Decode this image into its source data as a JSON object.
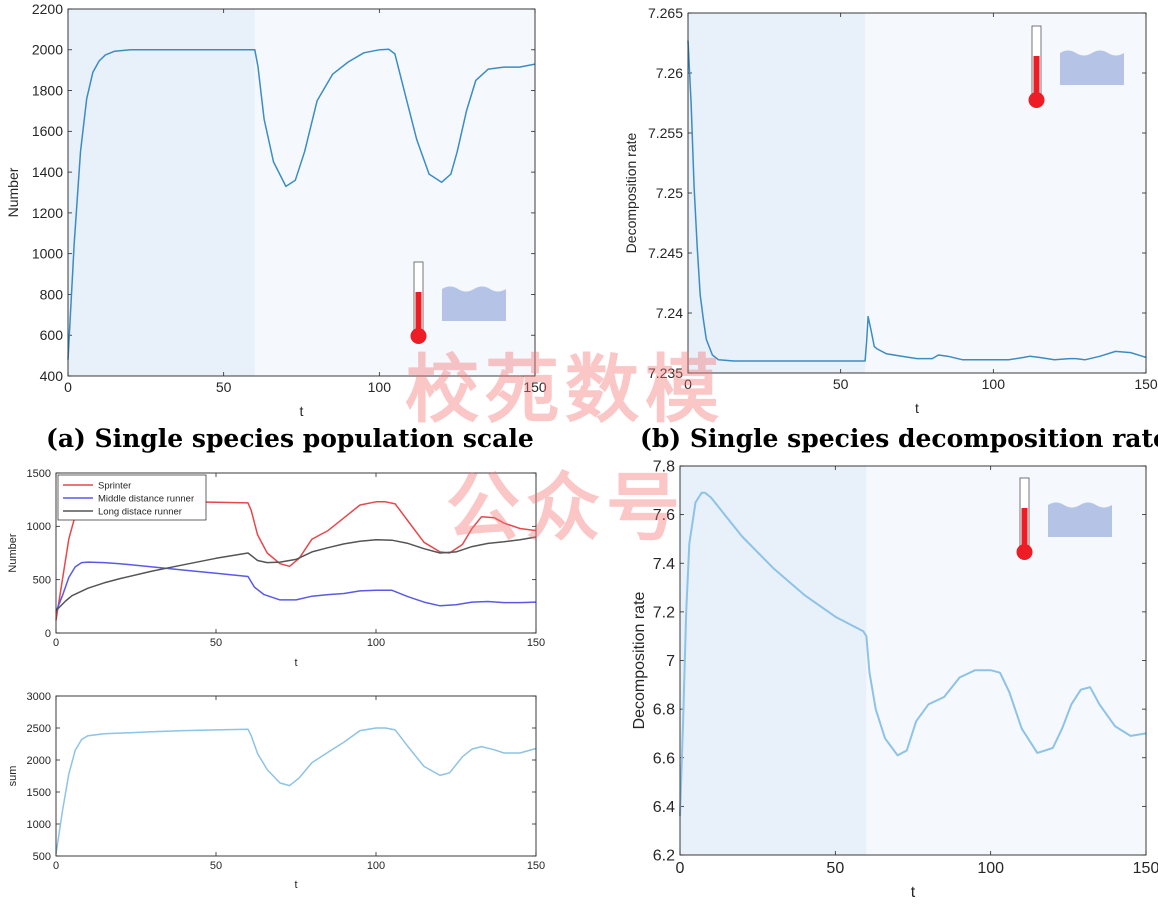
{
  "captions": {
    "a": "(a) Single species population scale",
    "b": "(b) Single species decomposition rate"
  },
  "watermark": {
    "line1": "校苑数模",
    "line2": "公众号"
  },
  "colors": {
    "line_blue": "#3c8cc4",
    "light_blue": "#8ec3e6",
    "shade": "#e8f0fa",
    "plot_bg": "#f5f9fe",
    "sprinter": "#e8474a",
    "middle": "#5a5ae8",
    "long": "#555555",
    "thermo_red": "#ee1c24",
    "water": "#b4c3e6"
  },
  "chart_data": [
    {
      "id": "a",
      "type": "line",
      "title": "",
      "xlabel": "t",
      "ylabel": "Number",
      "xlim": [
        0,
        150
      ],
      "ylim": [
        400,
        2200
      ],
      "xticks": [
        0,
        50,
        100,
        150
      ],
      "yticks": [
        400,
        600,
        800,
        1000,
        1200,
        1400,
        1600,
        1800,
        2000,
        2200
      ],
      "shaded_x": [
        0,
        60
      ],
      "series": [
        {
          "color_key": "line_blue",
          "x": [
            0,
            2,
            4,
            6,
            8,
            10,
            12,
            15,
            20,
            30,
            40,
            50,
            60,
            61,
            63,
            66,
            70,
            73,
            76,
            80,
            85,
            90,
            95,
            100,
            103,
            105,
            108,
            112,
            116,
            120,
            123,
            125,
            128,
            131,
            135,
            140,
            145,
            150
          ],
          "y": [
            480,
            1050,
            1500,
            1760,
            1890,
            1945,
            1975,
            1993,
            2000,
            2000,
            2000,
            2000,
            2000,
            1920,
            1660,
            1450,
            1330,
            1360,
            1500,
            1750,
            1880,
            1940,
            1985,
            2000,
            2003,
            1980,
            1800,
            1560,
            1390,
            1350,
            1390,
            1500,
            1700,
            1850,
            1905,
            1915,
            1915,
            1930
          ]
        }
      ],
      "icon": "thermometer-water-icon"
    },
    {
      "id": "b",
      "type": "line",
      "title": "",
      "xlabel": "t",
      "ylabel": "Decomposition rate",
      "xlim": [
        0,
        150
      ],
      "ylim": [
        7.235,
        7.265
      ],
      "xticks": [
        0,
        50,
        100,
        150
      ],
      "yticks": [
        7.235,
        7.24,
        7.245,
        7.25,
        7.255,
        7.26,
        7.265
      ],
      "ytick_labels": [
        "7.235",
        "7.24",
        "7.245",
        "7.25",
        "7.255",
        "7.26",
        "7.265"
      ],
      "shaded_x": [
        0,
        58
      ],
      "series": [
        {
          "color_key": "line_blue",
          "x": [
            0,
            1,
            2,
            3,
            4,
            5,
            6,
            8,
            10,
            15,
            20,
            30,
            40,
            50,
            58,
            58.5,
            59,
            60,
            61,
            62,
            65,
            70,
            75,
            80,
            82,
            85,
            90,
            95,
            100,
            105,
            110,
            112,
            115,
            120,
            125,
            127,
            130,
            135,
            140,
            145,
            150
          ],
          "y": [
            7.2627,
            7.2575,
            7.2505,
            7.2455,
            7.2415,
            7.2395,
            7.2378,
            7.2365,
            7.2361,
            7.236,
            7.236,
            7.236,
            7.236,
            7.236,
            7.236,
            7.2376,
            7.2397,
            7.2385,
            7.2372,
            7.237,
            7.2366,
            7.2364,
            7.2362,
            7.2362,
            7.2365,
            7.2364,
            7.2361,
            7.2361,
            7.2361,
            7.2361,
            7.2363,
            7.2364,
            7.2363,
            7.2361,
            7.2362,
            7.2362,
            7.2361,
            7.2364,
            7.2368,
            7.2367,
            7.2363
          ]
        }
      ],
      "icon": "thermometer-water-icon"
    },
    {
      "id": "c1",
      "type": "line",
      "title": "",
      "xlabel": "t",
      "ylabel": "Number",
      "xlim": [
        0,
        150
      ],
      "ylim": [
        0,
        1500
      ],
      "xticks": [
        0,
        50,
        100,
        150
      ],
      "yticks": [
        0,
        500,
        1000,
        1500
      ],
      "legend_position": "top-left",
      "series": [
        {
          "name": "Sprinter",
          "color_key": "sprinter",
          "x": [
            0,
            2,
            4,
            6,
            8,
            10,
            15,
            20,
            30,
            40,
            50,
            60,
            61,
            63,
            66,
            70,
            73,
            76,
            80,
            85,
            90,
            95,
            100,
            103,
            106,
            110,
            115,
            120,
            123,
            127,
            130,
            133,
            137,
            140,
            145,
            150
          ],
          "y": [
            120,
            500,
            880,
            1100,
            1210,
            1250,
            1245,
            1240,
            1235,
            1230,
            1225,
            1220,
            1150,
            920,
            750,
            650,
            625,
            700,
            880,
            960,
            1080,
            1200,
            1230,
            1230,
            1210,
            1050,
            850,
            760,
            750,
            830,
            980,
            1090,
            1080,
            1030,
            980,
            960
          ]
        },
        {
          "name": "Middle distance runner",
          "color_key": "middle",
          "x": [
            0,
            2,
            4,
            6,
            8,
            10,
            15,
            20,
            30,
            40,
            50,
            60,
            62,
            65,
            70,
            75,
            80,
            85,
            90,
            95,
            100,
            105,
            110,
            115,
            120,
            125,
            130,
            135,
            140,
            145,
            150
          ],
          "y": [
            200,
            350,
            520,
            620,
            660,
            665,
            660,
            650,
            620,
            590,
            560,
            530,
            430,
            360,
            310,
            310,
            345,
            360,
            370,
            395,
            400,
            400,
            340,
            290,
            255,
            265,
            290,
            295,
            285,
            285,
            290
          ]
        },
        {
          "name": "Long distace runner",
          "color_key": "long",
          "x": [
            0,
            3,
            5,
            10,
            15,
            20,
            30,
            40,
            50,
            60,
            63,
            66,
            70,
            75,
            80,
            85,
            90,
            95,
            100,
            105,
            110,
            115,
            120,
            125,
            130,
            135,
            140,
            145,
            150
          ],
          "y": [
            210,
            300,
            350,
            420,
            470,
            510,
            580,
            640,
            700,
            750,
            680,
            660,
            665,
            690,
            760,
            800,
            835,
            860,
            875,
            870,
            840,
            790,
            750,
            760,
            810,
            840,
            855,
            875,
            900
          ]
        }
      ]
    },
    {
      "id": "c2",
      "type": "line",
      "title": "",
      "xlabel": "t",
      "ylabel": "sum",
      "xlim": [
        0,
        150
      ],
      "ylim": [
        500,
        3000
      ],
      "xticks": [
        0,
        50,
        100,
        150
      ],
      "yticks": [
        500,
        1000,
        1500,
        2000,
        2500,
        3000
      ],
      "series": [
        {
          "color_key": "light_blue",
          "x": [
            0,
            2,
            4,
            6,
            8,
            10,
            15,
            20,
            30,
            40,
            50,
            60,
            61,
            63,
            66,
            70,
            73,
            76,
            80,
            85,
            90,
            95,
            100,
            103,
            106,
            110,
            115,
            120,
            123,
            127,
            130,
            133,
            137,
            140,
            145,
            150
          ],
          "y": [
            530,
            1200,
            1780,
            2150,
            2320,
            2380,
            2410,
            2420,
            2440,
            2460,
            2470,
            2480,
            2380,
            2100,
            1850,
            1640,
            1600,
            1720,
            1960,
            2120,
            2280,
            2460,
            2500,
            2500,
            2470,
            2210,
            1900,
            1760,
            1800,
            2050,
            2170,
            2210,
            2160,
            2110,
            2110,
            2180
          ]
        }
      ]
    },
    {
      "id": "d",
      "type": "line",
      "title": "",
      "xlabel": "t",
      "ylabel": "Decomposition rate",
      "xlim": [
        0,
        150
      ],
      "ylim": [
        6.2,
        7.8
      ],
      "xticks": [
        0,
        50,
        100,
        150
      ],
      "yticks": [
        6.2,
        6.4,
        6.6,
        6.8,
        7,
        7.2,
        7.4,
        7.6,
        7.8
      ],
      "ytick_labels": [
        "6.2",
        "6.4",
        "6.6",
        "6.8",
        "7",
        "7.2",
        "7.4",
        "7.6",
        "7.8"
      ],
      "shaded_x": [
        0,
        60
      ],
      "series": [
        {
          "color_key": "light_blue",
          "x": [
            0,
            1,
            2,
            3,
            5,
            7,
            8,
            10,
            15,
            20,
            30,
            40,
            50,
            59,
            60,
            61,
            63,
            66,
            70,
            73,
            76,
            80,
            85,
            90,
            95,
            100,
            103,
            106,
            110,
            115,
            120,
            123,
            126,
            129,
            132,
            135,
            140,
            145,
            150
          ],
          "y": [
            6.36,
            6.75,
            7.2,
            7.48,
            7.65,
            7.69,
            7.69,
            7.67,
            7.59,
            7.51,
            7.38,
            7.27,
            7.18,
            7.12,
            7.1,
            6.95,
            6.8,
            6.68,
            6.61,
            6.63,
            6.75,
            6.82,
            6.85,
            6.93,
            6.96,
            6.96,
            6.95,
            6.87,
            6.72,
            6.62,
            6.64,
            6.72,
            6.82,
            6.88,
            6.89,
            6.82,
            6.73,
            6.69,
            6.7
          ]
        }
      ],
      "icon": "thermometer-water-icon"
    }
  ]
}
